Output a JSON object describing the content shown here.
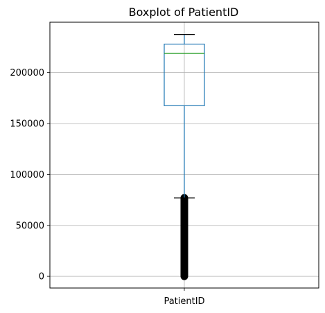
{
  "chart_data": {
    "type": "boxplot",
    "title": "Boxplot of PatientID",
    "xlabel": "",
    "ylabel": "",
    "categories": [
      "PatientID"
    ],
    "series": [
      {
        "name": "PatientID",
        "whisker_low": 0,
        "q1": 167500,
        "median": 219000,
        "q3": 228000,
        "whisker_high": 237500,
        "outliers_range": [
          0,
          77000
        ]
      }
    ],
    "yticks": [
      0,
      50000,
      100000,
      150000,
      200000
    ],
    "ytick_labels": [
      "0",
      "50000",
      "100000",
      "150000",
      "200000"
    ],
    "ylim": [
      -11500,
      249500
    ],
    "grid": true,
    "colors": {
      "box": "#1f77b4",
      "median": "#2ca02c",
      "whisker": "#1f77b4",
      "cap": "#000000",
      "outlier": "#000000",
      "grid": "#b0b0b0"
    }
  }
}
